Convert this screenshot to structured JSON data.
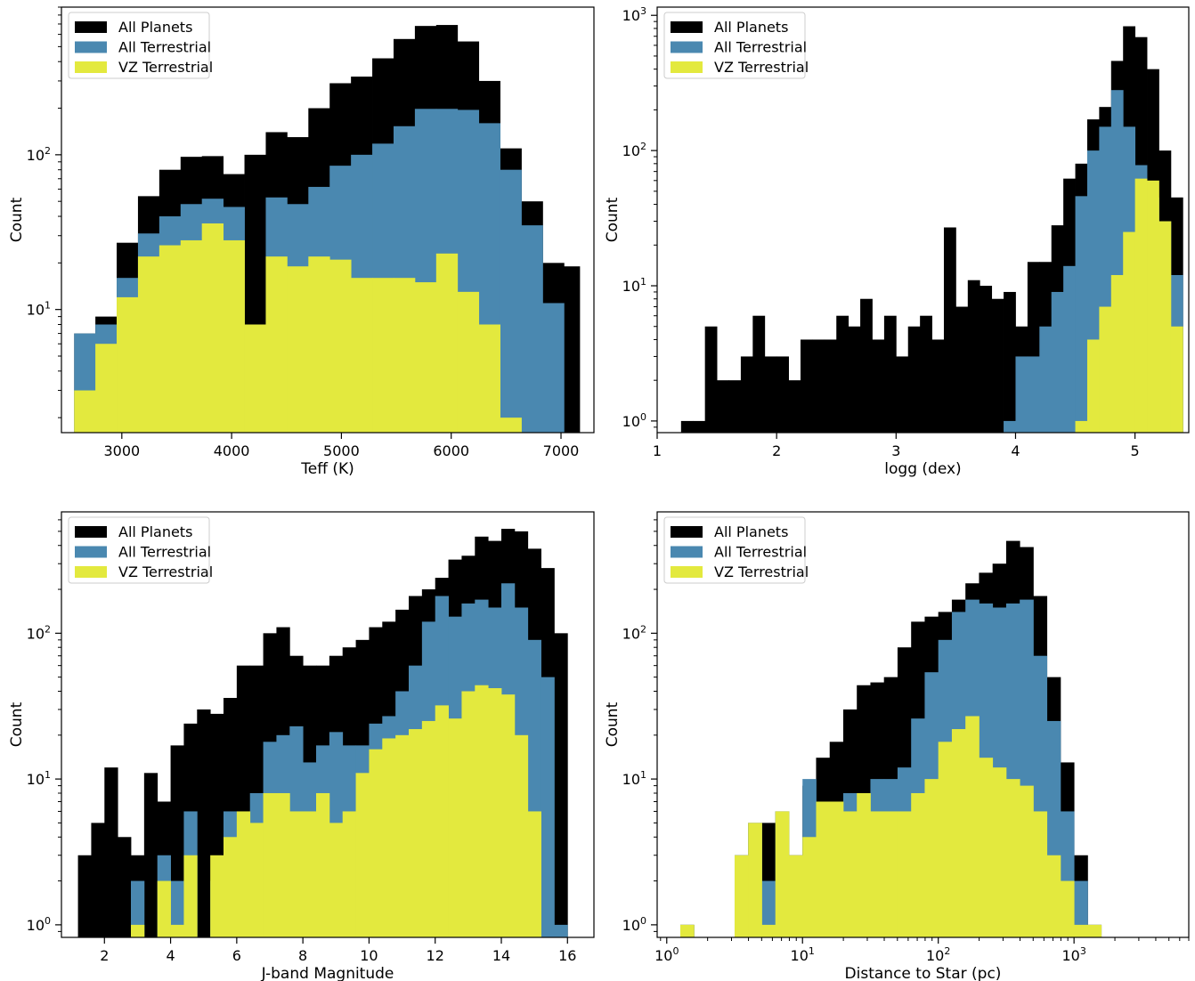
{
  "colors": {
    "all_planets": "#000000",
    "all_terrestrial": "#4a88b0",
    "vz_terrestrial": "#e3e93e"
  },
  "chart_data": [
    {
      "type": "bar",
      "xlabel": "Teff (K)",
      "ylabel": "Count",
      "yscale": "log",
      "xlim": [
        2450,
        7300
      ],
      "ylim": [
        1.6,
        900
      ],
      "xticks": [
        3000,
        4000,
        5000,
        6000,
        7000
      ],
      "yticks": [
        {
          "value": 10,
          "label": "10",
          "sup": "1"
        },
        {
          "value": 100,
          "label": "10",
          "sup": "2"
        }
      ],
      "legend_position": "top-left",
      "bin_edges": [
        2566,
        2759,
        2953,
        3147,
        3341,
        3535,
        3729,
        3923,
        4117,
        4311,
        4505,
        4699,
        4893,
        5087,
        5281,
        5475,
        5669,
        5863,
        6057,
        6251,
        6445,
        6639,
        6833,
        7027,
        7170
      ],
      "series": [
        {
          "name": "All Planets",
          "color": "#000000",
          "values": [
            7,
            9,
            27,
            54,
            80,
            97,
            98,
            75,
            100,
            140,
            130,
            200,
            290,
            320,
            420,
            560,
            680,
            690,
            540,
            300,
            110,
            50,
            20,
            19
          ]
        },
        {
          "name": "All Terrestrial",
          "color": "#4a88b0",
          "values": [
            7,
            8,
            16,
            31,
            40,
            48,
            52,
            46,
            8,
            53,
            48,
            62,
            85,
            100,
            118,
            153,
            198,
            198,
            195,
            160,
            80,
            35,
            11,
            null
          ]
        },
        {
          "name": "VZ Terrestrial",
          "color": "#e3e93e",
          "values": [
            3,
            6,
            12,
            22,
            26,
            28,
            36,
            28,
            8,
            22,
            19,
            22,
            21,
            16,
            16,
            16,
            15,
            23,
            13,
            8,
            2,
            null,
            null,
            null
          ]
        }
      ]
    },
    {
      "type": "bar",
      "xlabel": "logg (dex)",
      "ylabel": "Count",
      "yscale": "log",
      "xlim": [
        1.0,
        5.45
      ],
      "ylim": [
        0.82,
        1150
      ],
      "xticks": [
        1,
        2,
        3,
        4,
        5
      ],
      "yticks": [
        {
          "value": 1,
          "label": "10",
          "sup": "0"
        },
        {
          "value": 10,
          "label": "10",
          "sup": "1"
        },
        {
          "value": 100,
          "label": "10",
          "sup": "2"
        },
        {
          "value": 1000,
          "label": "10",
          "sup": "3"
        }
      ],
      "legend_position": "top-left",
      "bin_edges": [
        1.2,
        1.3,
        1.4,
        1.5,
        1.6,
        1.7,
        1.8,
        1.9,
        2.0,
        2.1,
        2.2,
        2.3,
        2.4,
        2.5,
        2.6,
        2.7,
        2.8,
        2.9,
        3.0,
        3.1,
        3.2,
        3.3,
        3.4,
        3.5,
        3.6,
        3.7,
        3.8,
        3.9,
        4.0,
        4.1,
        4.2,
        4.3,
        4.4,
        4.5,
        4.6,
        4.7,
        4.8,
        4.9,
        5.0,
        5.1,
        5.2,
        5.3,
        5.4
      ],
      "series": [
        {
          "name": "All Planets",
          "color": "#000000",
          "values": [
            1,
            1,
            5,
            2,
            2,
            3,
            6,
            3,
            3,
            2,
            4,
            4,
            4,
            6,
            5,
            8,
            4,
            6,
            3,
            5,
            6,
            4,
            27,
            7,
            11,
            10,
            8,
            9,
            5,
            15,
            15,
            28,
            62,
            80,
            170,
            210,
            460,
            830,
            690,
            400,
            100,
            45,
            40,
            20,
            10,
            4,
            2
          ]
        },
        {
          "name": "All Terrestrial",
          "color": "#4a88b0",
          "values": [
            null,
            null,
            null,
            null,
            null,
            null,
            null,
            null,
            null,
            null,
            null,
            null,
            null,
            null,
            null,
            null,
            null,
            null,
            null,
            null,
            null,
            null,
            null,
            null,
            null,
            null,
            null,
            1,
            3,
            3,
            5,
            9,
            14,
            46,
            100,
            150,
            280,
            150,
            78,
            45,
            30,
            12,
            5
          ]
        },
        {
          "name": "VZ Terrestrial",
          "color": "#e3e93e",
          "values": [
            null,
            null,
            null,
            null,
            null,
            null,
            null,
            null,
            null,
            null,
            null,
            null,
            null,
            null,
            null,
            null,
            null,
            null,
            null,
            null,
            null,
            null,
            null,
            null,
            null,
            null,
            null,
            null,
            null,
            null,
            null,
            null,
            null,
            1,
            4,
            7,
            12,
            25,
            62,
            60,
            30,
            5,
            3
          ]
        }
      ]
    },
    {
      "type": "bar",
      "xlabel": "J-band Magnitude",
      "ylabel": "Count",
      "yscale": "log",
      "xlim": [
        0.7,
        16.8
      ],
      "ylim": [
        0.82,
        680
      ],
      "xticks": [
        2,
        4,
        6,
        8,
        10,
        12,
        14,
        16
      ],
      "yticks": [
        {
          "value": 1,
          "label": "10",
          "sup": "0"
        },
        {
          "value": 10,
          "label": "10",
          "sup": "1"
        },
        {
          "value": 100,
          "label": "10",
          "sup": "2"
        }
      ],
      "legend_position": "top-left",
      "bin_edges": [
        1.2,
        1.6,
        2.0,
        2.4,
        2.8,
        3.2,
        3.6,
        4.0,
        4.4,
        4.8,
        5.2,
        5.6,
        6.0,
        6.4,
        6.8,
        7.2,
        7.6,
        8.0,
        8.4,
        8.8,
        9.2,
        9.6,
        10.0,
        10.4,
        10.8,
        11.2,
        11.6,
        12.0,
        12.4,
        12.8,
        13.2,
        13.6,
        14.0,
        14.4,
        14.8,
        15.2,
        15.6,
        16.0
      ],
      "series": [
        {
          "name": "All Planets",
          "color": "#000000",
          "values": [
            3,
            5,
            12,
            4,
            3,
            11,
            7,
            17,
            24,
            30,
            28,
            36,
            60,
            60,
            100,
            110,
            70,
            60,
            60,
            70,
            80,
            90,
            110,
            120,
            145,
            180,
            200,
            240,
            320,
            340,
            460,
            430,
            520,
            500,
            380,
            280,
            100,
            3,
            1
          ]
        },
        {
          "name": "All Terrestrial",
          "color": "#4a88b0",
          "values": [
            null,
            null,
            null,
            null,
            2,
            null,
            3,
            2,
            6,
            null,
            2,
            6,
            4,
            8,
            18,
            20,
            23,
            13,
            17,
            21,
            17,
            17,
            24,
            27,
            40,
            60,
            120,
            180,
            130,
            160,
            170,
            150,
            220,
            150,
            90,
            50,
            1,
            null,
            null
          ]
        },
        {
          "name": "VZ Terrestrial",
          "color": "#e3e93e",
          "values": [
            null,
            null,
            null,
            null,
            1,
            null,
            2,
            1,
            3,
            null,
            3,
            4,
            6,
            5,
            8,
            8,
            6,
            6,
            8,
            5,
            6,
            11,
            16,
            19,
            20,
            22,
            25,
            32,
            26,
            40,
            44,
            42,
            38,
            20,
            6,
            null,
            null,
            null,
            null
          ]
        }
      ]
    },
    {
      "type": "bar",
      "xlabel": "Distance to Star (pc)",
      "ylabel": "Count",
      "yscale": "log",
      "xscale": "log",
      "xlim": [
        0.85,
        7000
      ],
      "ylim": [
        0.82,
        680
      ],
      "xticks": [
        {
          "value": 1,
          "label": "10",
          "sup": "0"
        },
        {
          "value": 10,
          "label": "10",
          "sup": "1"
        },
        {
          "value": 100,
          "label": "10",
          "sup": "2"
        },
        {
          "value": 1000,
          "label": "10",
          "sup": "3"
        }
      ],
      "yticks": [
        {
          "value": 1,
          "label": "10",
          "sup": "0"
        },
        {
          "value": 10,
          "label": "10",
          "sup": "1"
        },
        {
          "value": 100,
          "label": "10",
          "sup": "2"
        }
      ],
      "legend_position": "top-left",
      "bin_log_edges": [
        0.1,
        0.2,
        0.3,
        0.4,
        0.5,
        0.6,
        0.7,
        0.8,
        0.9,
        1.0,
        1.1,
        1.2,
        1.3,
        1.4,
        1.5,
        1.6,
        1.7,
        1.8,
        1.9,
        2.0,
        2.1,
        2.2,
        2.3,
        2.4,
        2.5,
        2.6,
        2.7,
        2.8,
        2.9,
        3.0,
        3.1,
        3.2,
        3.3,
        3.4,
        3.5,
        3.6
      ],
      "series": [
        {
          "name": "All Planets",
          "color": "#000000",
          "values": [
            1,
            null,
            null,
            null,
            3,
            5,
            5,
            6,
            3,
            9,
            14,
            18,
            30,
            44,
            46,
            50,
            80,
            120,
            130,
            140,
            170,
            220,
            260,
            300,
            430,
            390,
            180,
            50,
            13,
            3,
            1
          ]
        },
        {
          "name": "All Terrestrial",
          "color": "#4a88b0",
          "values": [
            1,
            null,
            null,
            null,
            3,
            5,
            2,
            6,
            2,
            10,
            7,
            7,
            8,
            8,
            10,
            10,
            12,
            26,
            54,
            90,
            140,
            170,
            160,
            150,
            160,
            170,
            70,
            25,
            6,
            2,
            1
          ]
        },
        {
          "name": "VZ Terrestrial",
          "color": "#e3e93e",
          "values": [
            1,
            null,
            null,
            null,
            3,
            5,
            1,
            6,
            3,
            4,
            7,
            7,
            6,
            8,
            6,
            6,
            6,
            8,
            10,
            18,
            22,
            27,
            14,
            12,
            10,
            9,
            6,
            3,
            2,
            1,
            1
          ]
        }
      ]
    }
  ]
}
